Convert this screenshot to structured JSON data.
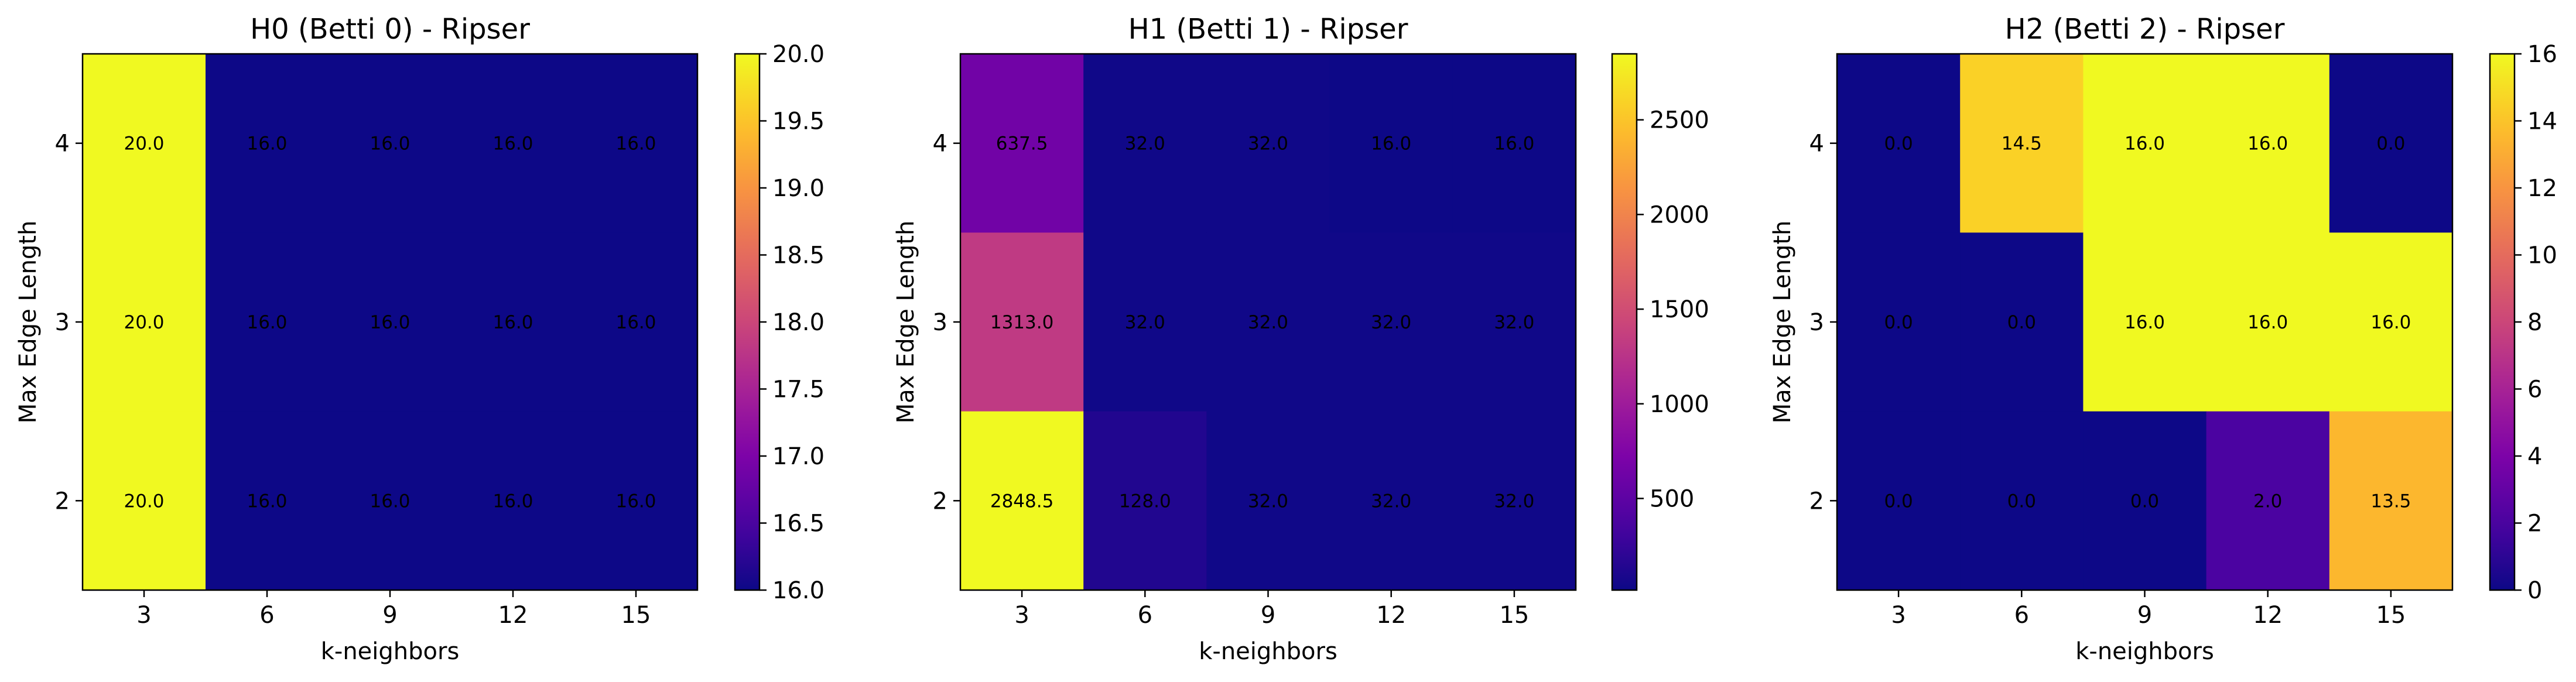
{
  "chart_data": [
    {
      "type": "heatmap",
      "title": "H0 (Betti 0) - Ripser",
      "xlabel": "k-neighbors",
      "ylabel": "Max Edge Length",
      "x_categories": [
        "3",
        "6",
        "9",
        "12",
        "15"
      ],
      "y_categories": [
        "4",
        "3",
        "2"
      ],
      "values": [
        [
          20.0,
          16.0,
          16.0,
          16.0,
          16.0
        ],
        [
          20.0,
          16.0,
          16.0,
          16.0,
          16.0
        ],
        [
          20.0,
          16.0,
          16.0,
          16.0,
          16.0
        ]
      ],
      "cell_labels": [
        [
          "20.0",
          "16.0",
          "16.0",
          "16.0",
          "16.0"
        ],
        [
          "20.0",
          "16.0",
          "16.0",
          "16.0",
          "16.0"
        ],
        [
          "20.0",
          "16.0",
          "16.0",
          "16.0",
          "16.0"
        ]
      ],
      "colorbar": {
        "vmin": 16.0,
        "vmax": 20.0,
        "ticks": [
          16.0,
          16.5,
          17.0,
          17.5,
          18.0,
          18.5,
          19.0,
          19.5,
          20.0
        ],
        "tick_labels": [
          "16.0",
          "16.5",
          "17.0",
          "17.5",
          "18.0",
          "18.5",
          "19.0",
          "19.5",
          "20.0"
        ]
      },
      "colormap": "plasma"
    },
    {
      "type": "heatmap",
      "title": "H1 (Betti 1) - Ripser",
      "xlabel": "k-neighbors",
      "ylabel": "Max Edge Length",
      "x_categories": [
        "3",
        "6",
        "9",
        "12",
        "15"
      ],
      "y_categories": [
        "4",
        "3",
        "2"
      ],
      "values": [
        [
          637.5,
          32.0,
          32.0,
          16.0,
          16.0
        ],
        [
          1313.0,
          32.0,
          32.0,
          32.0,
          32.0
        ],
        [
          2848.5,
          128.0,
          32.0,
          32.0,
          32.0
        ]
      ],
      "cell_labels": [
        [
          "637.5",
          "32.0",
          "32.0",
          "16.0",
          "16.0"
        ],
        [
          "1313.0",
          "32.0",
          "32.0",
          "32.0",
          "32.0"
        ],
        [
          "2848.5",
          "128.0",
          "32.0",
          "32.0",
          "32.0"
        ]
      ],
      "colorbar": {
        "vmin": 16.0,
        "vmax": 2848.5,
        "ticks": [
          500,
          1000,
          1500,
          2000,
          2500
        ],
        "tick_labels": [
          "500",
          "1000",
          "1500",
          "2000",
          "2500"
        ]
      },
      "colormap": "plasma"
    },
    {
      "type": "heatmap",
      "title": "H2 (Betti 2) - Ripser",
      "xlabel": "k-neighbors",
      "ylabel": "Max Edge Length",
      "x_categories": [
        "3",
        "6",
        "9",
        "12",
        "15"
      ],
      "y_categories": [
        "4",
        "3",
        "2"
      ],
      "values": [
        [
          0.0,
          14.5,
          16.0,
          16.0,
          0.0
        ],
        [
          0.0,
          0.0,
          16.0,
          16.0,
          16.0
        ],
        [
          0.0,
          0.0,
          0.0,
          2.0,
          13.5
        ]
      ],
      "cell_labels": [
        [
          "0.0",
          "14.5",
          "16.0",
          "16.0",
          "0.0"
        ],
        [
          "0.0",
          "0.0",
          "16.0",
          "16.0",
          "16.0"
        ],
        [
          "0.0",
          "0.0",
          "0.0",
          "2.0",
          "13.5"
        ]
      ],
      "colorbar": {
        "vmin": 0.0,
        "vmax": 16.0,
        "ticks": [
          0,
          2,
          4,
          6,
          8,
          10,
          12,
          14,
          16
        ],
        "tick_labels": [
          "0",
          "2",
          "4",
          "6",
          "8",
          "10",
          "12",
          "14",
          "16"
        ]
      },
      "colormap": "plasma"
    }
  ]
}
